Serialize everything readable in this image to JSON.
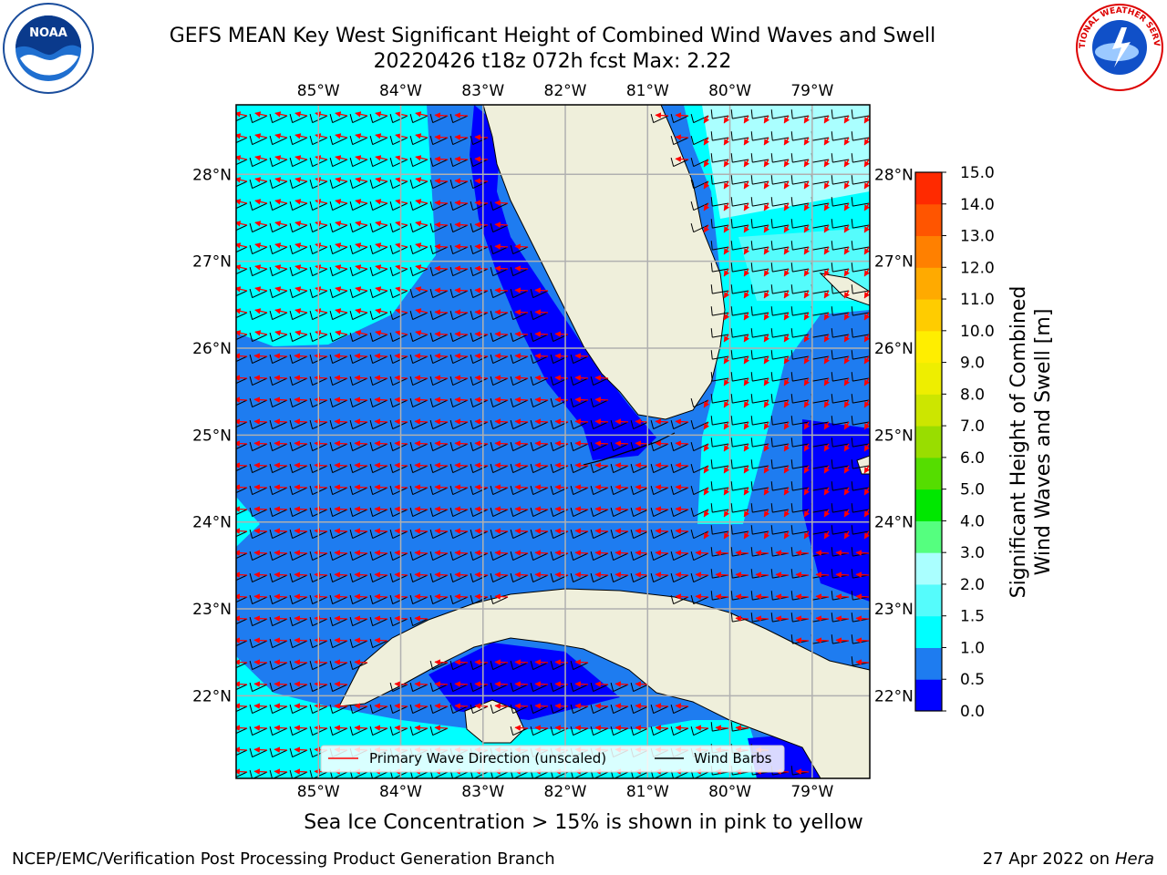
{
  "header": {
    "title_line1": "GEFS MEAN Key West Significant Height of Combined Wind Waves and Swell",
    "title_line2": "20220426 t18z 072h fcst   Max: 2.22"
  },
  "logos": {
    "left": "NOAA",
    "right": "NATIONAL WEATHER SERVICE"
  },
  "axes": {
    "lon_labels": [
      "85°W",
      "84°W",
      "83°W",
      "82°W",
      "81°W",
      "80°W",
      "79°W"
    ],
    "lon_values": [
      -85,
      -84,
      -83,
      -82,
      -81,
      -80,
      -79
    ],
    "lat_labels": [
      "28°N",
      "27°N",
      "26°N",
      "25°N",
      "24°N",
      "23°N",
      "22°N"
    ],
    "lat_values": [
      28,
      27,
      26,
      25,
      24,
      23,
      22
    ],
    "lon_range": [
      -86,
      -78.3
    ],
    "lat_range": [
      21.05,
      28.8
    ]
  },
  "legend": {
    "arrow_label": "Primary Wave Direction (unscaled)",
    "barb_label": "Wind Barbs",
    "arrow_color": "#ff0000",
    "barb_color": "#000000"
  },
  "colorbar": {
    "label_line1": "Significant Height of Combined",
    "label_line2": "Wind Waves and Swell [m]",
    "ticks": [
      "0.0",
      "0.5",
      "1.0",
      "1.5",
      "2.0",
      "3.0",
      "4.0",
      "5.0",
      "6.0",
      "7.0",
      "8.0",
      "9.0",
      "10.0",
      "11.0",
      "12.0",
      "13.0",
      "14.0",
      "15.0"
    ],
    "colors": [
      "#0000ff",
      "#1e7cf0",
      "#00ffff",
      "#55fcfc",
      "#aaffff",
      "#55ff7f",
      "#00e700",
      "#55dd00",
      "#99dd00",
      "#cce600",
      "#eeee00",
      "#ffee00",
      "#ffcc00",
      "#ffaa00",
      "#ff8000",
      "#ff5500",
      "#ff2a00"
    ]
  },
  "footer": {
    "note": "Sea Ice Concentration > 15% is shown in pink to yellow",
    "left": "NCEP/EMC/Verification Post Processing Product Generation Branch",
    "right_prefix": "27 Apr 2022 on ",
    "right_host": "Hera"
  }
}
